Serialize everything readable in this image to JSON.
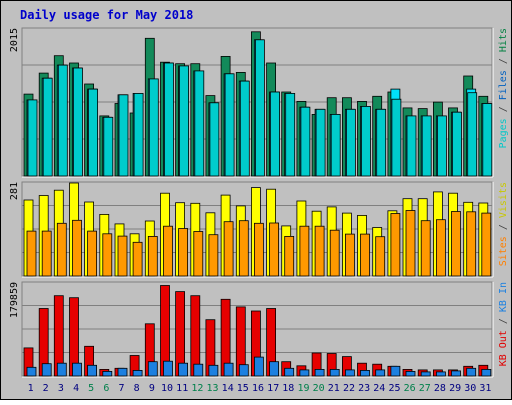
{
  "chart_data": {
    "type": "bar",
    "title": "Daily usage for May 2018",
    "days": [
      "1",
      "2",
      "3",
      "4",
      "5",
      "6",
      "7",
      "8",
      "9",
      "10",
      "11",
      "12",
      "13",
      "14",
      "15",
      "16",
      "17",
      "18",
      "19",
      "20",
      "21",
      "22",
      "23",
      "24",
      "25",
      "26",
      "27",
      "28",
      "29",
      "30",
      "31"
    ],
    "weekend_days": [
      "5",
      "6",
      "12",
      "13",
      "19",
      "20",
      "26",
      "27"
    ],
    "colors": {
      "pages": "#00cccc",
      "files": "#00e1f9",
      "hits": "#138a5a",
      "visits": "#ffff00",
      "sites": "#ff9900",
      "kb_in": "#1c80e0",
      "kb_out": "#e60000",
      "weekday_label": "#000080",
      "weekend_label": "#00804b",
      "title": "#0000cc"
    },
    "panels": [
      {
        "id": "hits-files-pages",
        "ymax_label": "2015",
        "ymax": 2015,
        "axis_label": [
          {
            "text": "Pages",
            "color": "#00c8c8"
          },
          {
            "text": " / ",
            "color": "#404040"
          },
          {
            "text": "Files",
            "color": "#0060c0"
          },
          {
            "text": " / ",
            "color": "#404040"
          },
          {
            "text": "Hits",
            "color": "#008040"
          }
        ],
        "series": [
          {
            "name": "Hits",
            "color": "#138a5a",
            "values": [
              1130,
              1420,
              1660,
              1560,
              1270,
              830,
              1000,
              870,
              1900,
              1570,
              1550,
              1550,
              1110,
              1650,
              1430,
              1990,
              1560,
              1160,
              1030,
              850,
              1080,
              1080,
              1030,
              1100,
              1160,
              940,
              930,
              1020,
              940,
              1380,
              1100
            ]
          },
          {
            "name": "Files",
            "color": "#00e1f9",
            "values": [
              1050,
              1350,
              1530,
              1490,
              1200,
              810,
              1120,
              1140,
              1340,
              1560,
              1520,
              1450,
              1010,
              1410,
              1310,
              1880,
              1160,
              1140,
              950,
              920,
              850,
              920,
              960,
              920,
              1200,
              830,
              830,
              830,
              880,
              1200,
              1000
            ]
          },
          {
            "name": "Pages",
            "color": "#00cccc",
            "values": [
              1050,
              1350,
              1530,
              1490,
              1200,
              810,
              1120,
              1140,
              1340,
              1560,
              1520,
              1450,
              1010,
              1410,
              1310,
              1880,
              1160,
              1140,
              950,
              920,
              850,
              920,
              960,
              920,
              1060,
              830,
              830,
              830,
              880,
              1150,
              1000
            ]
          }
        ]
      },
      {
        "id": "visits-sites",
        "ymax_label": "281",
        "ymax": 281,
        "axis_label": [
          {
            "text": "Sites",
            "color": "#ff8000"
          },
          {
            "text": " / ",
            "color": "#404040"
          },
          {
            "text": "Visits",
            "color": "#c8c800"
          }
        ],
        "series": [
          {
            "name": "Visits",
            "color": "#ffff00",
            "values": [
              232,
              246,
              262,
              284,
              226,
              188,
              159,
              129,
              168,
              253,
              224,
              222,
              193,
              247,
              214,
              270,
              265,
              153,
              229,
              198,
              211,
              192,
              185,
              148,
              199,
              236,
              236,
              257,
              253,
              225,
              223
            ]
          },
          {
            "name": "Sites",
            "color": "#ff9900",
            "values": [
              137,
              137,
              161,
              170,
              137,
              129,
              122,
              103,
              121,
              152,
              145,
              136,
              126,
              166,
              169,
              161,
              162,
              121,
              152,
              152,
              140,
              128,
              128,
              120,
              191,
              200,
              169,
              172,
              197,
              196,
              192
            ]
          }
        ]
      },
      {
        "id": "kb",
        "ymax_label": "179859",
        "ymax": 179859,
        "axis_label": [
          {
            "text": "KB Out",
            "color": "#e00000"
          },
          {
            "text": " / ",
            "color": "#404040"
          },
          {
            "text": "KB In",
            "color": "#1c80e0"
          }
        ],
        "series": [
          {
            "name": "KB Out",
            "color": "#e60000",
            "values": [
              55000,
              132000,
              157000,
              153000,
              58000,
              13000,
              15000,
              40000,
              102000,
              177000,
              165000,
              157000,
              110000,
              150000,
              135000,
              127000,
              132000,
              28000,
              20000,
              45000,
              44000,
              38000,
              25000,
              23000,
              19000,
              13000,
              12000,
              12000,
              12000,
              19000,
              21000
            ]
          },
          {
            "name": "KB In",
            "color": "#1c80e0",
            "values": [
              17000,
              24000,
              25000,
              25000,
              21000,
              9000,
              15000,
              11000,
              28000,
              29000,
              25000,
              23000,
              21000,
              25000,
              22000,
              37000,
              28000,
              15000,
              12000,
              13000,
              13000,
              12000,
              11000,
              12000,
              19000,
              9000,
              8000,
              8000,
              10000,
              15000,
              13000
            ]
          }
        ]
      }
    ]
  }
}
